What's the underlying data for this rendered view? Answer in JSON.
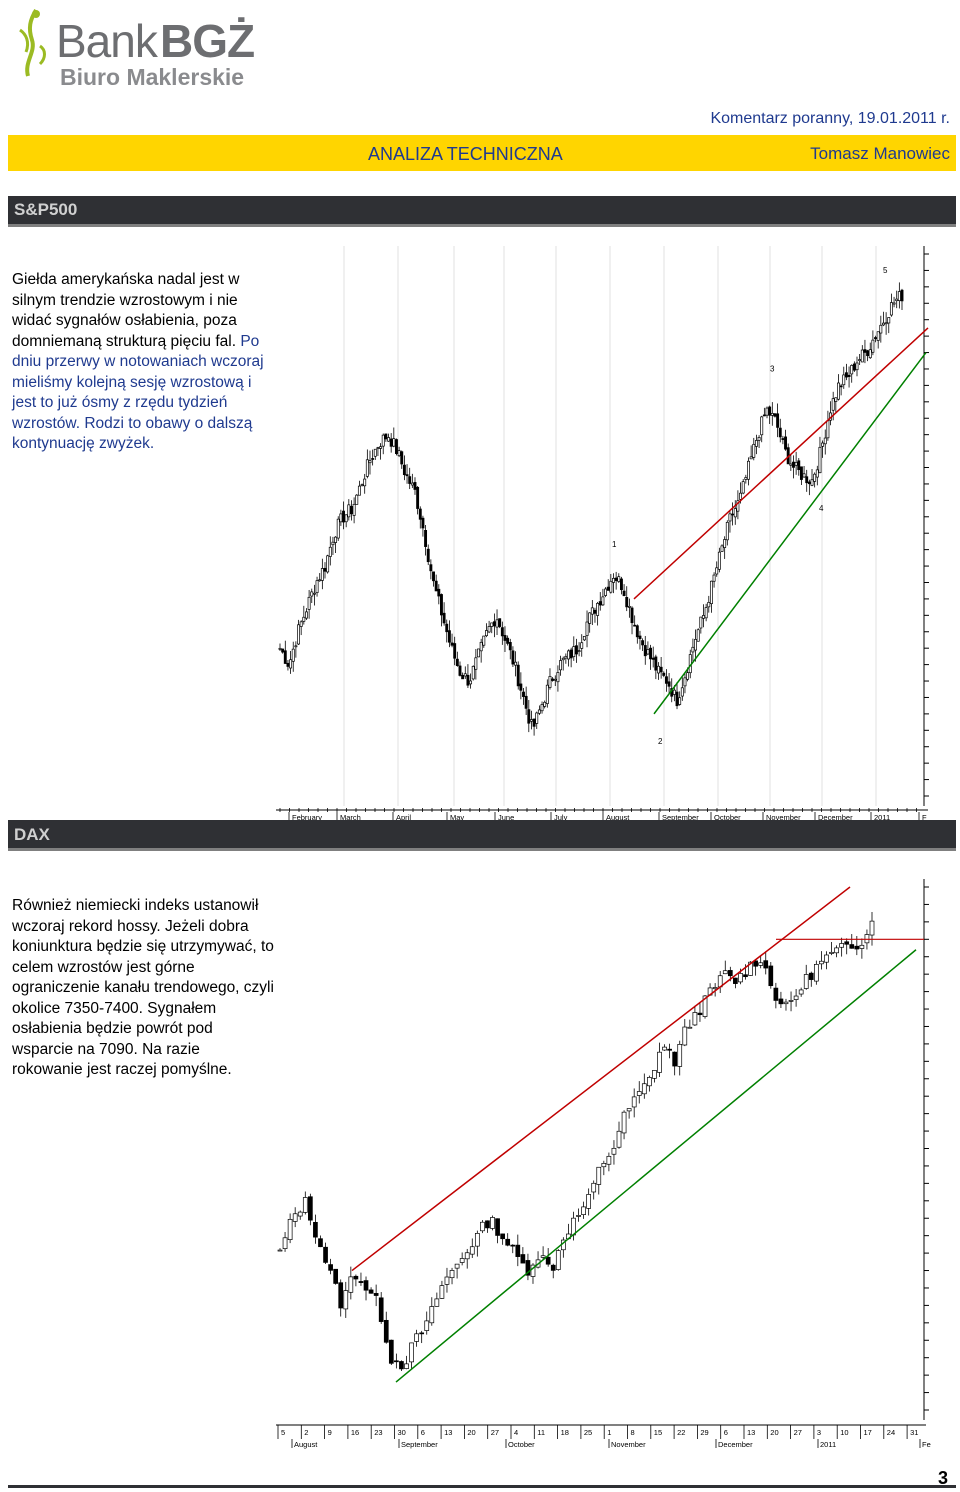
{
  "header": {
    "logo_bank": "Bank",
    "logo_bgz": "BGŻ",
    "logo_sub": "Biuro Maklerskie",
    "comment_line": "Komentarz poranny, 19.01.2011 r.",
    "title": "ANALIZA TECHNICZNA",
    "author": "Tomasz Manowiec"
  },
  "sections": {
    "sp500": {
      "label": "S&P500",
      "para_black": "Giełda amerykańska nadal jest w silnym trendzie wzrostowym i nie widać sygnałów osłabienia, poza domniemaną strukturą pięciu fal. ",
      "para_blue": "Po dniu przerwy w notowaniach wczoraj mieliśmy kolejną sesję wzrostową i jest to już ósmy z rzędu tydzień wzrostów. Rodzi to obawy o dalszą kontynuację zwyżek."
    },
    "dax": {
      "label": "DAX",
      "para": "Również niemiecki indeks ustanowił wczoraj rekord hossy. Jeżeli dobra koniunktura będzie się utrzymywać, to celem wzrostów jest górne ograniczenie kanału trendowego, czyli okolice 7350-7400. Sygnałem osłabienia będzie powrót pod wsparcie na 7090. Na razie rokowanie jest raczej pomyślne."
    }
  },
  "page_number": "3",
  "colors": {
    "accent_yellow": "#ffd500",
    "header_blue": "#1f3a8f",
    "section_bar": "#2f3034",
    "resistance": "#c00000",
    "support": "#008000"
  },
  "chart_data": [
    {
      "type": "candlestick",
      "ylim": [
        990,
        1320
      ],
      "y_ticks": [
        1320,
        1310,
        1300,
        1290,
        1280,
        1270,
        1260,
        1250,
        1240,
        1230,
        1220,
        1210,
        1200,
        1190,
        1180,
        1170,
        1160,
        1150,
        1140,
        1130,
        1120,
        1110,
        1100,
        1090,
        1080,
        1070,
        1060,
        1050,
        1040,
        1030,
        1020,
        1010,
        1000,
        990
      ],
      "x_labels": [
        "February",
        "March",
        "April",
        "May",
        "June",
        "July",
        "August",
        "September",
        "October",
        "November",
        "December",
        "2011",
        "F"
      ],
      "close_path": [
        1080,
        1070,
        1090,
        1105,
        1120,
        1130,
        1150,
        1160,
        1165,
        1180,
        1195,
        1205,
        1210,
        1200,
        1185,
        1175,
        1150,
        1120,
        1100,
        1080,
        1065,
        1060,
        1075,
        1090,
        1100,
        1085,
        1070,
        1050,
        1030,
        1045,
        1060,
        1070,
        1075,
        1080,
        1095,
        1105,
        1115,
        1125,
        1118,
        1100,
        1085,
        1075,
        1065,
        1060,
        1048,
        1065,
        1085,
        1100,
        1120,
        1140,
        1160,
        1170,
        1190,
        1210,
        1225,
        1218,
        1200,
        1190,
        1185,
        1182,
        1200,
        1225,
        1240,
        1245,
        1255,
        1260,
        1270,
        1280,
        1290,
        1295
      ],
      "wave_labels": [
        {
          "label": "1",
          "x": 1134,
          "y": 1133
        },
        {
          "label": "2",
          "x": 1035,
          "y": 1035
        },
        {
          "label": "3",
          "x": 1240,
          "y": 1240
        },
        {
          "label": "4",
          "x": 1177,
          "y": 1177
        },
        {
          "label": "5",
          "x": 1300,
          "y": 1300
        }
      ],
      "resistance_line": [
        [
          1110
        ],
        [
          1275
        ]
      ],
      "support_line": [
        [
          1040
        ],
        [
          1260
        ]
      ]
    },
    {
      "type": "candlestick",
      "ylim": [
        5750,
        7250
      ],
      "y_ticks": [
        7250,
        7200,
        7150,
        7100,
        7050,
        7000,
        6950,
        6900,
        6850,
        6800,
        6750,
        6700,
        6650,
        6600,
        6550,
        6500,
        6450,
        6400,
        6350,
        6300,
        6250,
        6200,
        6150,
        6100,
        6050,
        6000,
        5950,
        5900,
        5850,
        5800,
        5750
      ],
      "x_day_ticks": [
        "5",
        "2",
        "9",
        "16",
        "23",
        "30",
        "6",
        "13",
        "20",
        "27",
        "4",
        "11",
        "18",
        "25",
        "1",
        "8",
        "15",
        "22",
        "29",
        "6",
        "13",
        "20",
        "27",
        "3",
        "10",
        "17",
        "24",
        "31"
      ],
      "x_month_labels": [
        "August",
        "September",
        "October",
        "November",
        "December",
        "2011",
        "Fe"
      ],
      "close_path": [
        6200,
        6300,
        6350,
        6250,
        6150,
        6050,
        6150,
        6100,
        6050,
        5900,
        5880,
        5950,
        6000,
        6100,
        6150,
        6200,
        6250,
        6300,
        6250,
        6200,
        6150,
        6200,
        6150,
        6250,
        6300,
        6350,
        6450,
        6500,
        6600,
        6650,
        6700,
        6800,
        6750,
        6850,
        6900,
        6950,
        7000,
        6980,
        7020,
        7050,
        6950,
        6900,
        6950,
        7000,
        7040,
        7060,
        7080,
        7090,
        7150
      ],
      "resistance_level": 7100,
      "upper_channel": [
        [
          6150
        ],
        [
          7250
        ]
      ],
      "lower_channel": [
        [
          5830
        ],
        [
          7070
        ]
      ]
    }
  ]
}
